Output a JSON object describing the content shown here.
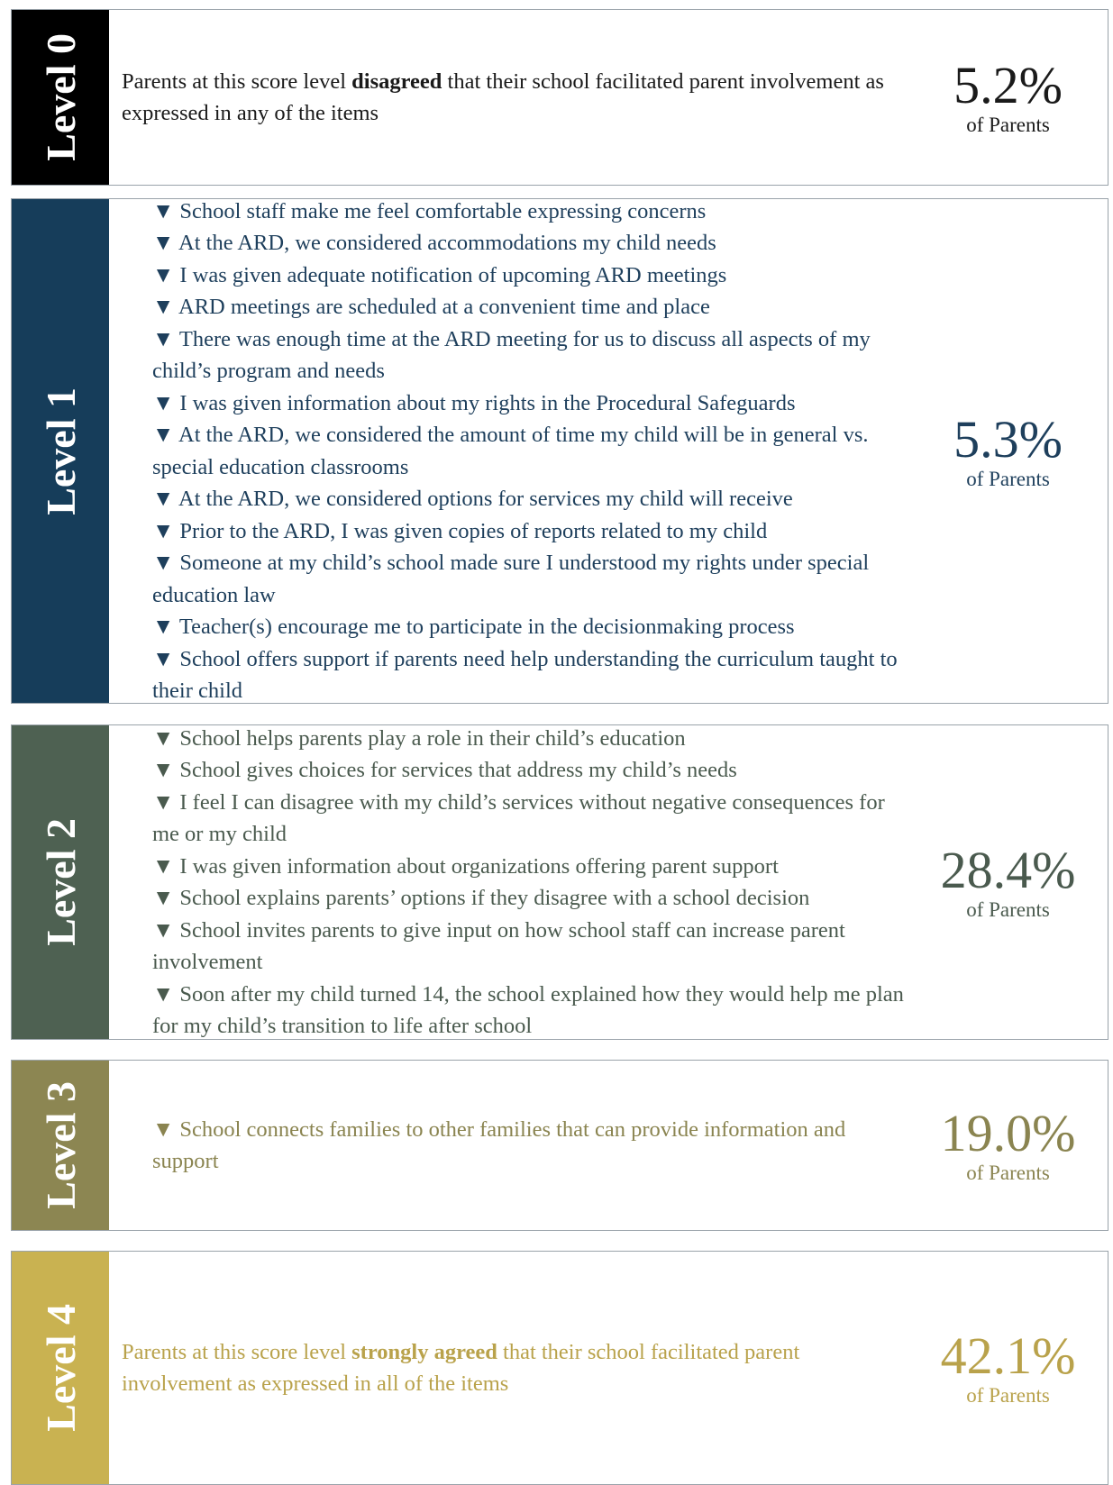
{
  "levels": [
    {
      "label": "Level 0",
      "color": "#000000",
      "text_color": "#1a1a1a",
      "description": {
        "before": "Parents at this score level ",
        "emphasis": "disagreed",
        "after": " that their school facilitated parent involvement as expressed in any of the items"
      },
      "percent": "5.2%",
      "unit": "of Parents"
    },
    {
      "label": "Level 1",
      "color": "#163d5a",
      "text_color": "#1e3f5c",
      "items": [
        "▼ School staff make me feel comfortable expressing concerns",
        "▼ At the ARD, we considered accommodations my child needs",
        "▼ I was given adequate notification of upcoming ARD meetings",
        "▼ ARD meetings are scheduled at a convenient time and place",
        "▼ There was enough time at the ARD meeting for us to discuss all aspects of my child’s program and needs",
        "▼ I was given information about my rights in the Procedural Safeguards",
        "▼ At the ARD, we considered the amount of time my child will be in general vs. special education classrooms",
        "▼ At the ARD, we considered options for services my child will receive",
        "▼ Prior to the ARD, I was given copies of reports related to my child",
        "▼ Someone at my child’s school made sure I understood my rights under special education law",
        "▼ Teacher(s) encourage me to participate in the decisionmaking process",
        "▼ School offers support if parents need help understanding the curriculum taught to their child"
      ],
      "percent": "5.3%",
      "unit": "of Parents"
    },
    {
      "label": "Level 2",
      "color": "#4e6152",
      "text_color": "#4a5a4e",
      "items": [
        "▼ School helps parents play a role in their child’s education",
        "▼ School gives choices for services that address my child’s needs",
        "▼ I feel I can disagree with my child’s services without negative consequences for me or my child",
        "▼ I was given information about organizations offering parent support",
        "▼ School explains parents’ options if they disagree with a school decision",
        "▼ School invites parents to give input on how school staff can increase parent involvement",
        "▼ Soon after my child turned 14, the school explained how they would help me plan for my child’s transition to life after school"
      ],
      "percent": "28.4%",
      "unit": "of Parents"
    },
    {
      "label": "Level 3",
      "color": "#8c8652",
      "text_color": "#8a8450",
      "items": [
        "▼ School connects families to other families that can provide information and support"
      ],
      "percent": "19.0%",
      "unit": "of Parents"
    },
    {
      "label": "Level 4",
      "color": "#c9b251",
      "text_color": "#b9a24b",
      "description": {
        "before": "Parents at this score level ",
        "emphasis": "strongly agreed",
        "after": " that their school facilitated parent involvement as expressed in all of the items"
      },
      "percent": "42.1%",
      "unit": "of Parents"
    }
  ]
}
